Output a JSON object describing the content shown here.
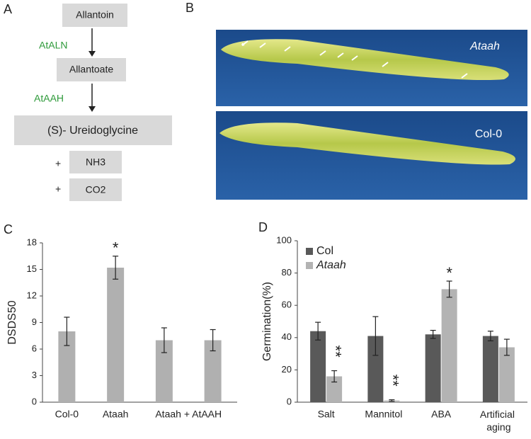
{
  "diagram": {
    "label": "A",
    "nodes": [
      {
        "label": "Allantoin"
      },
      {
        "label": "Allantoate"
      },
      {
        "label": "(S)- Ureidoglycine"
      },
      {
        "label": "NH3"
      },
      {
        "label": "CO2"
      }
    ],
    "enzymes": [
      "AtALN",
      "AtAAH"
    ],
    "plus": [
      "+",
      "+"
    ]
  },
  "photos": {
    "label": "B",
    "captions": [
      "Ataah",
      "Col-0"
    ]
  },
  "chart_data": [
    {
      "type": "bar",
      "panel": "C",
      "ylabel": "DSDS50",
      "categories": [
        "Col-0",
        "Ataah",
        "Ataah + AtAAH",
        null
      ],
      "values": [
        8,
        15.2,
        7,
        7
      ],
      "errors": [
        1.6,
        1.3,
        1.4,
        1.2
      ],
      "color": "#b0b0b0",
      "ylim": [
        0,
        18
      ],
      "yticks": [
        0,
        3,
        6,
        9,
        12,
        15,
        18
      ],
      "annotations": [
        {
          "text": "*",
          "category": 1
        }
      ]
    },
    {
      "type": "grouped_bar",
      "panel": "D",
      "ylabel": "Germination(%)",
      "categories": [
        "Salt",
        "Mannitol",
        "ABA",
        "Artificial aging"
      ],
      "series": [
        {
          "name": "Col",
          "color": "#595959",
          "values": [
            44,
            41,
            42,
            41
          ],
          "errors": [
            5.5,
            12,
            2.5,
            3
          ]
        },
        {
          "name": "Ataah",
          "color": "#b3b3b3",
          "values": [
            16,
            1,
            70,
            34
          ],
          "errors": [
            3.5,
            0.5,
            5,
            5
          ]
        }
      ],
      "ylim": [
        0,
        100
      ],
      "yticks": [
        0,
        20,
        40,
        60,
        80,
        100
      ],
      "legend": "top-left",
      "annotations": [
        {
          "text": "**",
          "category": 0,
          "series": 1
        },
        {
          "text": "**",
          "category": 1,
          "series": 1
        },
        {
          "text": "*",
          "category": 2,
          "series": 1
        }
      ]
    }
  ]
}
